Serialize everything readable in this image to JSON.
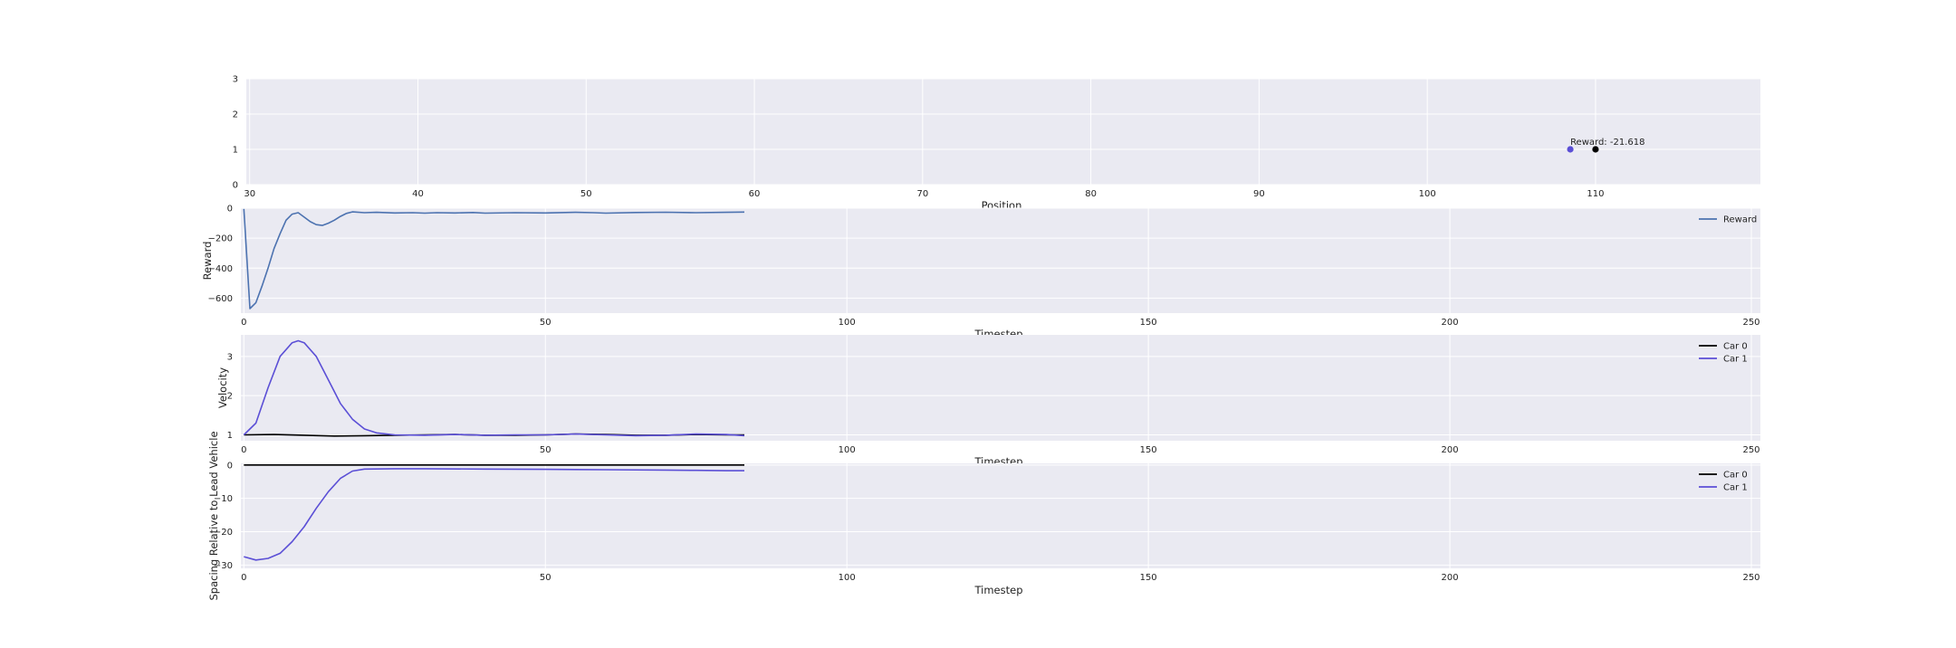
{
  "chart_data": [
    {
      "type": "scatter",
      "xlabel": "Position",
      "ylabel": "",
      "xlim": [
        29.8,
        119.8
      ],
      "ylim": [
        0,
        3
      ],
      "xticks": [
        "30",
        "40",
        "50",
        "60",
        "70",
        "80",
        "90",
        "100",
        "110"
      ],
      "yticks": [
        "0",
        "1",
        "2",
        "3"
      ],
      "grid": true,
      "points": [
        {
          "x": 108.5,
          "y": 1,
          "color": "#5b4fd6"
        },
        {
          "x": 110,
          "y": 1,
          "color": "#000000"
        }
      ],
      "annotation": {
        "text": "Reward: -21.618",
        "x": 108.5,
        "y": 1.08
      }
    },
    {
      "type": "line",
      "xlabel": "Timestep",
      "ylabel": "Reward",
      "xlim": [
        -0.5,
        251.5
      ],
      "ylim": [
        -700,
        0
      ],
      "xticks": [
        "0",
        "50",
        "100",
        "150",
        "200",
        "250"
      ],
      "yticks": [
        "0",
        "−200",
        "−400",
        "−600"
      ],
      "grid": true,
      "legend": "top-right",
      "series": [
        {
          "name": "Reward",
          "color": "#4c72b0",
          "x": [
            0,
            1,
            2,
            3,
            4,
            5,
            6,
            7,
            8,
            9,
            10,
            11,
            12,
            13,
            14,
            15,
            16,
            17,
            18,
            20,
            22,
            25,
            28,
            30,
            32,
            35,
            38,
            40,
            45,
            50,
            55,
            58,
            60,
            65,
            70,
            75,
            80,
            83
          ],
          "values": [
            -5,
            -670,
            -630,
            -520,
            -400,
            -270,
            -170,
            -80,
            -40,
            -30,
            -60,
            -90,
            -110,
            -115,
            -100,
            -80,
            -55,
            -35,
            -25,
            -30,
            -28,
            -32,
            -30,
            -33,
            -30,
            -32,
            -29,
            -33,
            -30,
            -32,
            -28,
            -30,
            -33,
            -29,
            -27,
            -30,
            -28,
            -26
          ]
        }
      ]
    },
    {
      "type": "line",
      "xlabel": "Timestep",
      "ylabel": "Velocity",
      "xlim": [
        -0.5,
        251.5
      ],
      "ylim": [
        0.85,
        3.55
      ],
      "xticks": [
        "0",
        "50",
        "100",
        "150",
        "200",
        "250"
      ],
      "yticks": [
        "1",
        "2",
        "3"
      ],
      "grid": true,
      "legend": "top-right",
      "series": [
        {
          "name": "Car 0",
          "color": "#000000",
          "x": [
            0,
            5,
            10,
            15,
            20,
            25,
            30,
            35,
            40,
            45,
            50,
            55,
            60,
            65,
            70,
            75,
            80,
            83
          ],
          "values": [
            1.0,
            1.01,
            0.99,
            0.97,
            0.98,
            0.99,
            1.0,
            1.01,
            0.99,
            0.99,
            1.0,
            1.02,
            1.01,
            0.99,
            0.99,
            1.01,
            1.0,
            1.0
          ]
        },
        {
          "name": "Car 1",
          "color": "#5b4fd6",
          "x": [
            0,
            2,
            4,
            6,
            8,
            9,
            10,
            12,
            14,
            16,
            18,
            20,
            22,
            25,
            30,
            35,
            40,
            45,
            50,
            55,
            60,
            65,
            70,
            75,
            80,
            83
          ],
          "values": [
            1.0,
            1.3,
            2.2,
            3.0,
            3.35,
            3.4,
            3.35,
            3.0,
            2.4,
            1.8,
            1.4,
            1.15,
            1.05,
            1.0,
            0.99,
            1.01,
            0.99,
            1.0,
            1.0,
            1.02,
            1.0,
            0.98,
            0.99,
            1.02,
            1.01,
            0.98
          ]
        }
      ]
    },
    {
      "type": "line",
      "xlabel": "Timestep",
      "ylabel": "Spacing Relative to Lead Vehicle",
      "xlim": [
        -0.5,
        251.5
      ],
      "ylim": [
        -31,
        0.5
      ],
      "xticks": [
        "0",
        "50",
        "100",
        "150",
        "200",
        "250"
      ],
      "yticks": [
        "0",
        "−10",
        "−20",
        "−30"
      ],
      "grid": true,
      "legend": "top-right",
      "series": [
        {
          "name": "Car 0",
          "color": "#000000",
          "x": [
            0,
            83
          ],
          "values": [
            0,
            0
          ]
        },
        {
          "name": "Car 1",
          "color": "#5b4fd6",
          "x": [
            0,
            2,
            4,
            6,
            8,
            10,
            12,
            14,
            16,
            18,
            20,
            25,
            30,
            40,
            50,
            60,
            70,
            75,
            80,
            83
          ],
          "values": [
            -27.5,
            -28.5,
            -28,
            -26.5,
            -23,
            -18.5,
            -13,
            -8,
            -4,
            -1.8,
            -1.2,
            -1.1,
            -1.1,
            -1.2,
            -1.3,
            -1.4,
            -1.5,
            -1.6,
            -1.7,
            -1.7
          ]
        }
      ]
    }
  ]
}
